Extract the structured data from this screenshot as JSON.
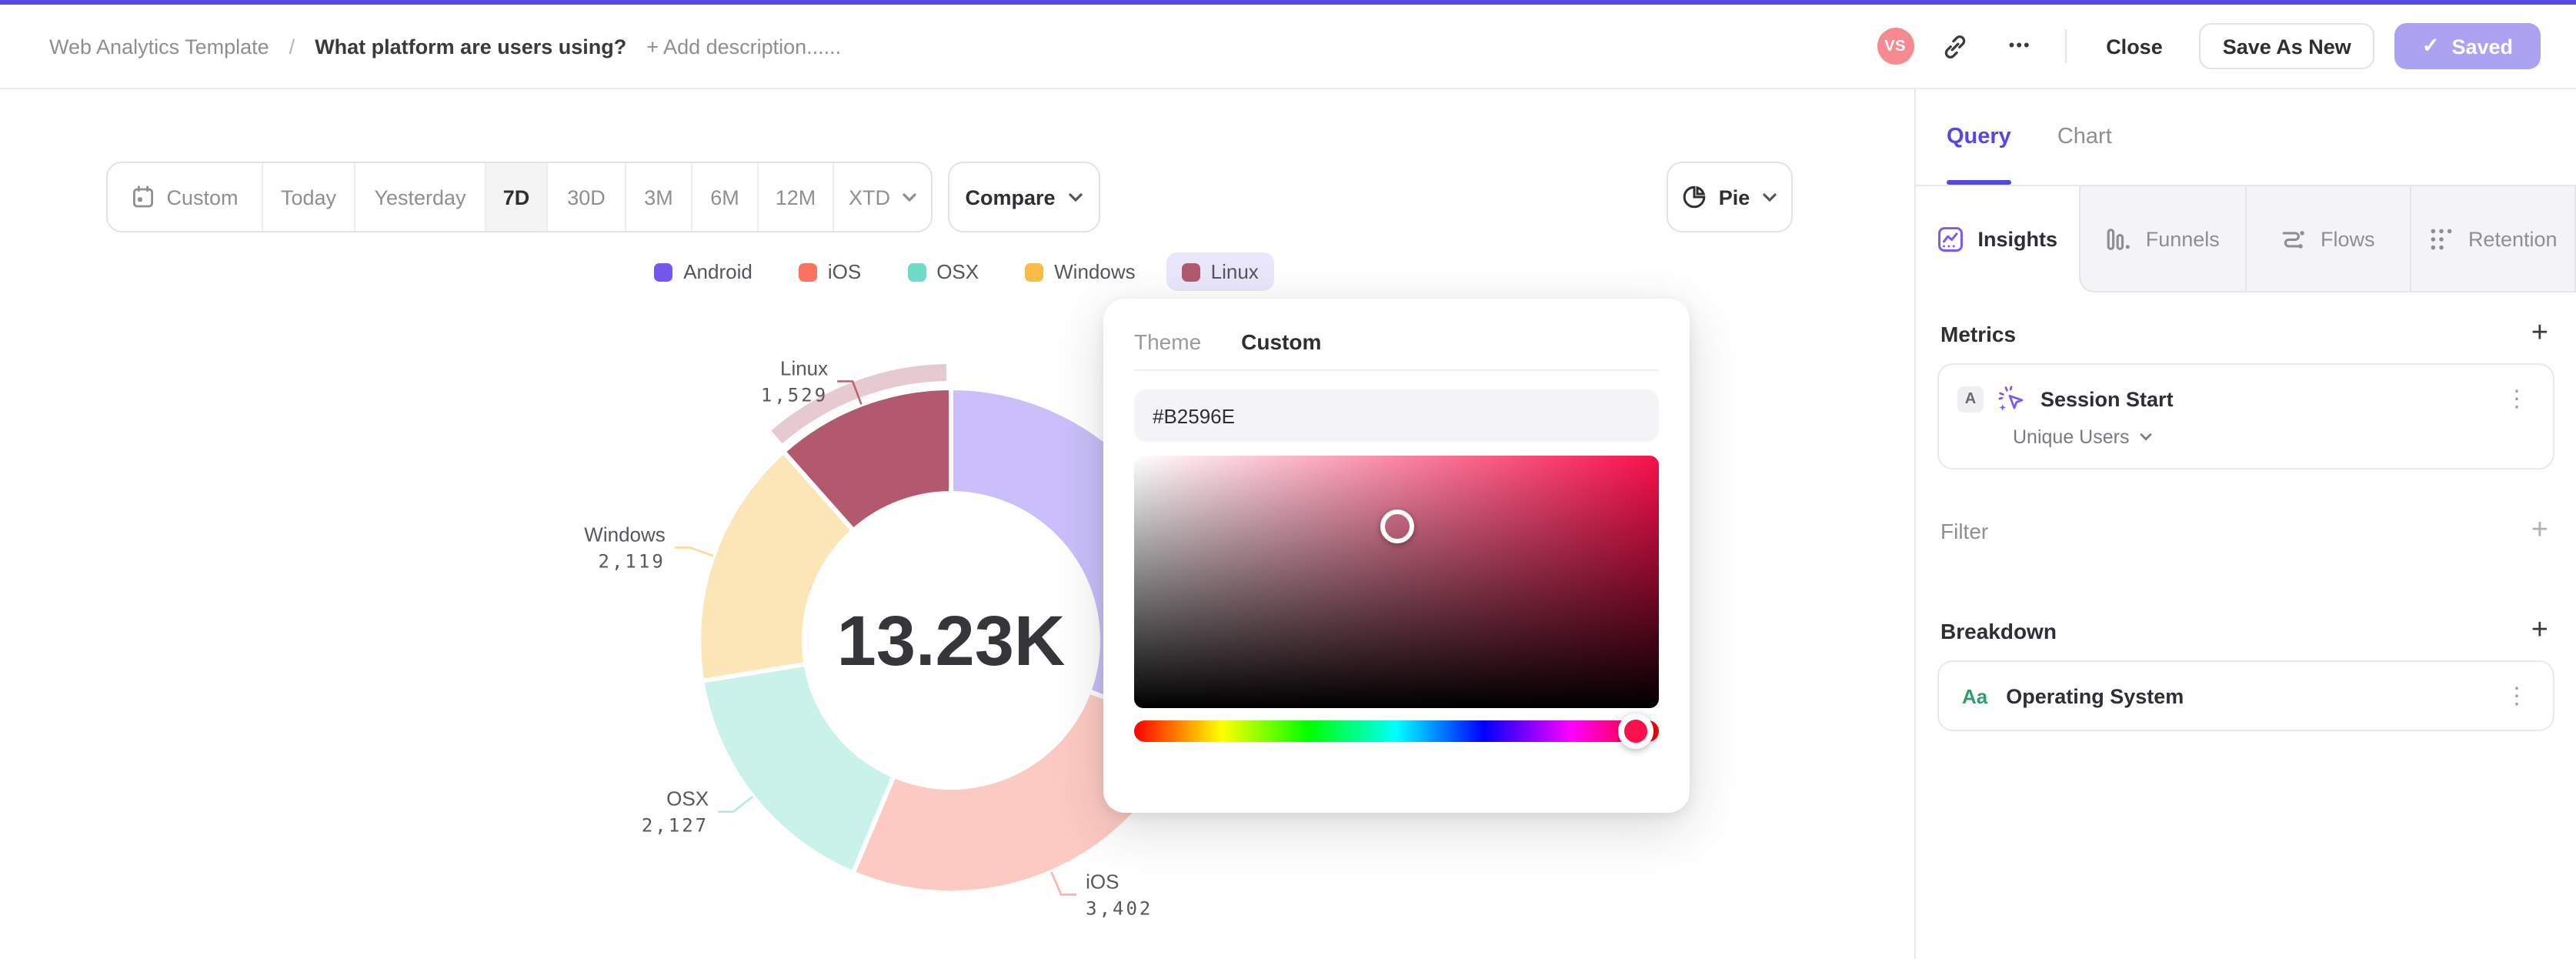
{
  "header": {
    "accent_color": "#544be2",
    "breadcrumb": "Web Analytics Template",
    "breadcrumb_separator": "/",
    "title": "What platform are users using?",
    "add_description_label": "+ Add description......",
    "avatar_initials": "VS",
    "ellipsis": "•••",
    "close_label": "Close",
    "save_as_new_label": "Save As New",
    "saved_label": "Saved",
    "saved_check": "✓"
  },
  "toolbar": {
    "date_ranges": [
      {
        "label": "Custom",
        "icon": "calendar",
        "active": false
      },
      {
        "label": "Today",
        "active": false
      },
      {
        "label": "Yesterday",
        "active": false
      },
      {
        "label": "7D",
        "active": true
      },
      {
        "label": "30D",
        "active": false
      },
      {
        "label": "3M",
        "active": false
      },
      {
        "label": "6M",
        "active": false
      },
      {
        "label": "12M",
        "active": false
      },
      {
        "label": "XTD",
        "chevron": true,
        "active": false
      }
    ],
    "compare_label": "Compare",
    "chart_type_label": "Pie"
  },
  "chart_data": {
    "type": "pie",
    "style": "donut",
    "center_label": "13.23K",
    "total": 13230,
    "legend_position": "top",
    "series": [
      {
        "name": "Android",
        "value": 4053,
        "color": "#7456f1",
        "label_visible": false
      },
      {
        "name": "iOS",
        "value": 3402,
        "value_label": "3,402",
        "color": "#f97360",
        "label_visible": true
      },
      {
        "name": "OSX",
        "value": 2127,
        "value_label": "2,127",
        "color": "#6fdcc8",
        "label_visible": true
      },
      {
        "name": "Windows",
        "value": 2119,
        "value_label": "2,119",
        "color": "#f7bc45",
        "label_visible": true
      },
      {
        "name": "Linux",
        "value": 1529,
        "value_label": "1,529",
        "color": "#b2596e",
        "label_visible": true,
        "highlighted": true
      }
    ]
  },
  "color_picker": {
    "tabs": [
      {
        "label": "Theme",
        "active": false
      },
      {
        "label": "Custom",
        "active": true
      }
    ],
    "hex_value": "#B2596E",
    "hue_color": "#fa0f4c",
    "saturation_pct": 50,
    "brightness_pct": 28,
    "hue_pct": 95.7,
    "thumb_color": "#fb0f4d"
  },
  "sidebar": {
    "tabs": [
      {
        "label": "Query",
        "active": true
      },
      {
        "label": "Chart",
        "active": false
      }
    ],
    "view_tabs": [
      {
        "label": "Insights",
        "icon": "insights",
        "active": true
      },
      {
        "label": "Funnels",
        "icon": "funnels",
        "active": false
      },
      {
        "label": "Flows",
        "icon": "flows",
        "active": false
      },
      {
        "label": "Retention",
        "icon": "retention",
        "active": false
      }
    ],
    "metrics": {
      "heading": "Metrics",
      "add_label": "+",
      "items": [
        {
          "badge": "A",
          "icon": "cursor-click",
          "label": "Session Start",
          "aggregation": "Unique Users"
        }
      ]
    },
    "filter": {
      "heading": "Filter",
      "add_label": "+"
    },
    "breakdown": {
      "heading": "Breakdown",
      "add_label": "+",
      "items": [
        {
          "badge": "Aa",
          "label": "Operating System"
        }
      ]
    }
  }
}
